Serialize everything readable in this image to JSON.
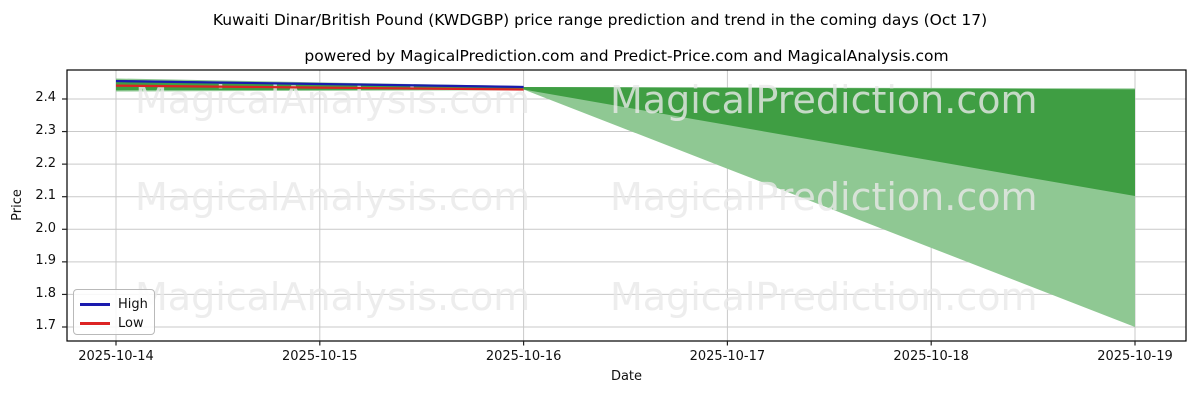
{
  "header": {
    "title": "Kuwaiti Dinar/British Pound (KWDGBP) price range prediction and trend in the coming days (Oct 17)",
    "subtitle": "powered by MagicalPrediction.com and Predict-Price.com and MagicalAnalysis.com"
  },
  "axes": {
    "x_label": "Date",
    "y_label": "Price",
    "x_tick_labels": [
      "2025-10-14",
      "2025-10-15",
      "2025-10-16",
      "2025-10-17",
      "2025-10-18",
      "2025-10-19"
    ],
    "y_tick_labels": [
      "2.4",
      "2.3",
      "2.2",
      "2.1",
      "2.0",
      "1.9",
      "1.8",
      "1.7"
    ]
  },
  "legend": {
    "items": [
      {
        "label": "High",
        "color": "#1a1aae"
      },
      {
        "label": "Low",
        "color": "#dc2323"
      }
    ]
  },
  "watermarks": {
    "left_text": "MagicalAnalysis.com",
    "right_text": "MagicalPrediction.com",
    "color": "#e8e8e8"
  },
  "chart_data": {
    "type": "line",
    "title": "Kuwaiti Dinar/British Pound (KWDGBP) price range prediction and trend in the coming days (Oct 17)",
    "xlabel": "Date",
    "ylabel": "Price",
    "grid": true,
    "legend_position": "lower left",
    "x": [
      "2025-10-14",
      "2025-10-15",
      "2025-10-16",
      "2025-10-17",
      "2025-10-18",
      "2025-10-19"
    ],
    "y_ticks": [
      2.4,
      2.3,
      2.2,
      2.1,
      2.0,
      1.9,
      1.8,
      1.7
    ],
    "ylim": [
      1.657,
      2.489
    ],
    "series": [
      {
        "name": "High",
        "color": "#1a1aae",
        "x_index": [
          0,
          1,
          2
        ],
        "values": [
          2.455,
          2.446,
          2.437
        ]
      },
      {
        "name": "Low",
        "color": "#dc2323",
        "x_index": [
          0,
          1,
          2
        ],
        "values": [
          2.441,
          2.435,
          2.429
        ]
      }
    ],
    "bands": [
      {
        "name": "history-range-outer",
        "color": "#8fc893",
        "x_index": [
          0,
          1,
          2
        ],
        "upper": [
          2.463,
          2.451,
          2.44
        ],
        "lower": [
          2.423,
          2.425,
          2.427
        ]
      },
      {
        "name": "forecast-range-outer",
        "color": "#8fc893",
        "x_index": [
          2,
          3,
          4,
          5
        ],
        "upper": [
          2.437,
          2.4355,
          2.434,
          2.4325
        ],
        "lower": [
          2.429,
          2.186,
          1.943,
          1.7
        ]
      },
      {
        "name": "history-range-inner",
        "color": "#3f9e43",
        "x_index": [
          0,
          1,
          2
        ],
        "upper": [
          2.459,
          2.448,
          2.438
        ],
        "lower": [
          2.427,
          2.428,
          2.429
        ]
      },
      {
        "name": "forecast-range-inner",
        "color": "#3f9e43",
        "x_index": [
          2,
          3,
          4,
          5
        ],
        "upper": [
          2.437,
          2.4345,
          2.432,
          2.4295
        ],
        "lower": [
          2.429,
          2.32,
          2.211,
          2.102
        ]
      }
    ],
    "grid_color": "#c9c9c9",
    "frame_color": "#000000"
  }
}
